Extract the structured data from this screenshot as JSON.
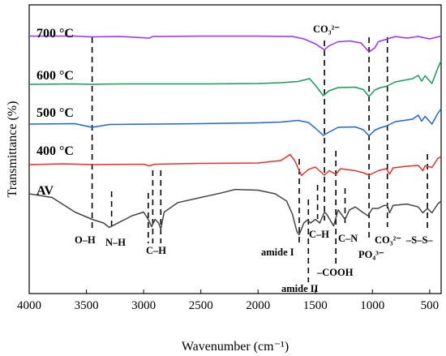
{
  "chart_data": {
    "type": "line",
    "xlabel": "Wavenumber (cm⁻¹)",
    "ylabel": "Transmittance (%)",
    "xlim": [
      4000,
      400
    ],
    "x_reversed": true,
    "x_ticks": [
      4000,
      3500,
      3000,
      2500,
      2000,
      1500,
      1000,
      500
    ],
    "y_ticks_shown": false,
    "grid": false,
    "series": [
      {
        "name": "700 °C",
        "color": "#9b30ff",
        "points": [
          [
            4000,
            0.9
          ],
          [
            3600,
            0.9
          ],
          [
            3450,
            0.7
          ],
          [
            3200,
            0.8
          ],
          [
            2950,
            0.4
          ],
          [
            2920,
            0.8
          ],
          [
            2500,
            0.9
          ],
          [
            2000,
            0.9
          ],
          [
            1700,
            0.8
          ],
          [
            1600,
            0.2
          ],
          [
            1500,
            -1.0
          ],
          [
            1420,
            -2.5
          ],
          [
            1380,
            -1.5
          ],
          [
            1300,
            -0.5
          ],
          [
            1200,
            -0.3
          ],
          [
            1100,
            -0.8
          ],
          [
            1030,
            -3.0
          ],
          [
            980,
            -2.0
          ],
          [
            950,
            -0.5
          ],
          [
            870,
            0.2
          ],
          [
            800,
            0.8
          ],
          [
            700,
            0.4
          ],
          [
            600,
            0.8
          ],
          [
            500,
            0.2
          ],
          [
            400,
            0.9
          ]
        ]
      },
      {
        "name": "600 °C",
        "color": "#1a9b5a",
        "points": [
          [
            4000,
            0.2
          ],
          [
            3600,
            0.3
          ],
          [
            3450,
            0.2
          ],
          [
            3200,
            0.3
          ],
          [
            2500,
            0.3
          ],
          [
            2000,
            0.4
          ],
          [
            1800,
            0.6
          ],
          [
            1650,
            0.9
          ],
          [
            1550,
            1.6
          ],
          [
            1500,
            0.0
          ],
          [
            1430,
            -2.6
          ],
          [
            1380,
            -1.4
          ],
          [
            1300,
            -0.6
          ],
          [
            1150,
            -0.5
          ],
          [
            1080,
            -1.1
          ],
          [
            1030,
            -2.8
          ],
          [
            980,
            -1.2
          ],
          [
            930,
            -0.6
          ],
          [
            880,
            -0.3
          ],
          [
            800,
            0.8
          ],
          [
            650,
            1.6
          ],
          [
            600,
            2.4
          ],
          [
            570,
            1.0
          ],
          [
            540,
            2.3
          ],
          [
            480,
            0.4
          ],
          [
            430,
            4.2
          ],
          [
            400,
            6.0
          ]
        ]
      },
      {
        "name": "500 °C",
        "color": "#2166c8",
        "points": [
          [
            4000,
            0.2
          ],
          [
            3600,
            0.3
          ],
          [
            3450,
            -0.6
          ],
          [
            3300,
            0.1
          ],
          [
            2500,
            0.3
          ],
          [
            2000,
            0.5
          ],
          [
            1800,
            0.7
          ],
          [
            1650,
            1.1
          ],
          [
            1560,
            0.6
          ],
          [
            1500,
            -0.8
          ],
          [
            1430,
            -2.6
          ],
          [
            1380,
            -1.8
          ],
          [
            1300,
            -0.6
          ],
          [
            1150,
            -0.5
          ],
          [
            1080,
            -1.2
          ],
          [
            1030,
            -2.7
          ],
          [
            980,
            -1.3
          ],
          [
            930,
            -0.7
          ],
          [
            880,
            -0.3
          ],
          [
            800,
            0.8
          ],
          [
            650,
            1.4
          ],
          [
            600,
            2.4
          ],
          [
            570,
            0.9
          ],
          [
            540,
            2.1
          ],
          [
            480,
            0.2
          ],
          [
            430,
            2.8
          ],
          [
            400,
            4.0
          ]
        ]
      },
      {
        "name": "400 °C",
        "color": "#e8302e",
        "points": [
          [
            4000,
            0.0
          ],
          [
            3700,
            0.2
          ],
          [
            3450,
            0.0
          ],
          [
            3000,
            0.1
          ],
          [
            2950,
            -0.3
          ],
          [
            2900,
            0.1
          ],
          [
            2500,
            0.3
          ],
          [
            2000,
            0.4
          ],
          [
            1800,
            1.0
          ],
          [
            1720,
            2.5
          ],
          [
            1680,
            1.0
          ],
          [
            1620,
            -2.7
          ],
          [
            1560,
            -1.2
          ],
          [
            1500,
            -0.6
          ],
          [
            1420,
            -2.6
          ],
          [
            1380,
            -1.5
          ],
          [
            1320,
            -2.4
          ],
          [
            1280,
            -1.0
          ],
          [
            1150,
            -1.5
          ],
          [
            1080,
            -2.0
          ],
          [
            1030,
            -2.6
          ],
          [
            950,
            -1.5
          ],
          [
            880,
            -1.0
          ],
          [
            850,
            -2.3
          ],
          [
            820,
            -0.8
          ],
          [
            700,
            -0.4
          ],
          [
            600,
            -0.2
          ],
          [
            560,
            -1.5
          ],
          [
            540,
            -0.3
          ],
          [
            480,
            -0.7
          ],
          [
            430,
            1.5
          ],
          [
            400,
            2.0
          ]
        ]
      },
      {
        "name": "AV",
        "color": "#444444",
        "points": [
          [
            4000,
            1.0
          ],
          [
            3800,
            0.5
          ],
          [
            3600,
            -1.5
          ],
          [
            3450,
            -2.5
          ],
          [
            3350,
            -3.0
          ],
          [
            3300,
            -3.6
          ],
          [
            3200,
            -2.8
          ],
          [
            3100,
            -2.0
          ],
          [
            3000,
            -1.5
          ],
          [
            2960,
            -2.5
          ],
          [
            2930,
            -3.5
          ],
          [
            2900,
            -2.5
          ],
          [
            2870,
            -3.0
          ],
          [
            2850,
            -3.8
          ],
          [
            2820,
            -1.5
          ],
          [
            2700,
            -0.2
          ],
          [
            2500,
            0.5
          ],
          [
            2300,
            1.2
          ],
          [
            2200,
            1.6
          ],
          [
            2000,
            1.5
          ],
          [
            1850,
            1.0
          ],
          [
            1750,
            0.0
          ],
          [
            1700,
            -1.8
          ],
          [
            1660,
            -4.2
          ],
          [
            1640,
            -4.6
          ],
          [
            1600,
            -3.0
          ],
          [
            1570,
            -2.6
          ],
          [
            1540,
            -3.0
          ],
          [
            1500,
            -2.5
          ],
          [
            1460,
            -3.0
          ],
          [
            1420,
            -1.5
          ],
          [
            1400,
            -1.8
          ],
          [
            1340,
            -3.4
          ],
          [
            1300,
            -1.2
          ],
          [
            1240,
            -2.5
          ],
          [
            1200,
            -1.2
          ],
          [
            1150,
            -0.8
          ],
          [
            1080,
            -1.6
          ],
          [
            1040,
            -2.0
          ],
          [
            1000,
            -1.0
          ],
          [
            950,
            -1.0
          ],
          [
            900,
            -0.6
          ],
          [
            870,
            -0.6
          ],
          [
            850,
            -1.6
          ],
          [
            820,
            -0.6
          ],
          [
            700,
            -0.4
          ],
          [
            600,
            -0.8
          ],
          [
            560,
            -1.6
          ],
          [
            520,
            -1.0
          ],
          [
            480,
            -1.6
          ],
          [
            430,
            -0.4
          ],
          [
            400,
            0.0
          ]
        ]
      }
    ],
    "series_labels": [
      "700 °C",
      "600 °C",
      "500 °C",
      "400 °C",
      "AV"
    ],
    "annotations": [
      {
        "label": "O–H",
        "x": 3450
      },
      {
        "label": "N–H",
        "x": 3280
      },
      {
        "label": "C–H",
        "x": 2920
      },
      {
        "label": "amide I",
        "x": 1640
      },
      {
        "label": "amide II",
        "x": 1540
      },
      {
        "label": "C–H",
        "x": 1460
      },
      {
        "label": "–COOH",
        "x": 1320
      },
      {
        "label": "C–N",
        "x": 1240
      },
      {
        "label": "PO₄³⁻",
        "x": 1030
      },
      {
        "label": "CO₃²⁻",
        "x": 870
      },
      {
        "label": "–S–S–",
        "x": 530
      },
      {
        "label": "CO₃²⁻",
        "x": 1420
      }
    ],
    "dashed_lines": [
      3450,
      3280,
      2960,
      2920,
      2850,
      1640,
      1560,
      1480,
      1420,
      1320,
      1240,
      1030,
      870,
      520
    ]
  }
}
